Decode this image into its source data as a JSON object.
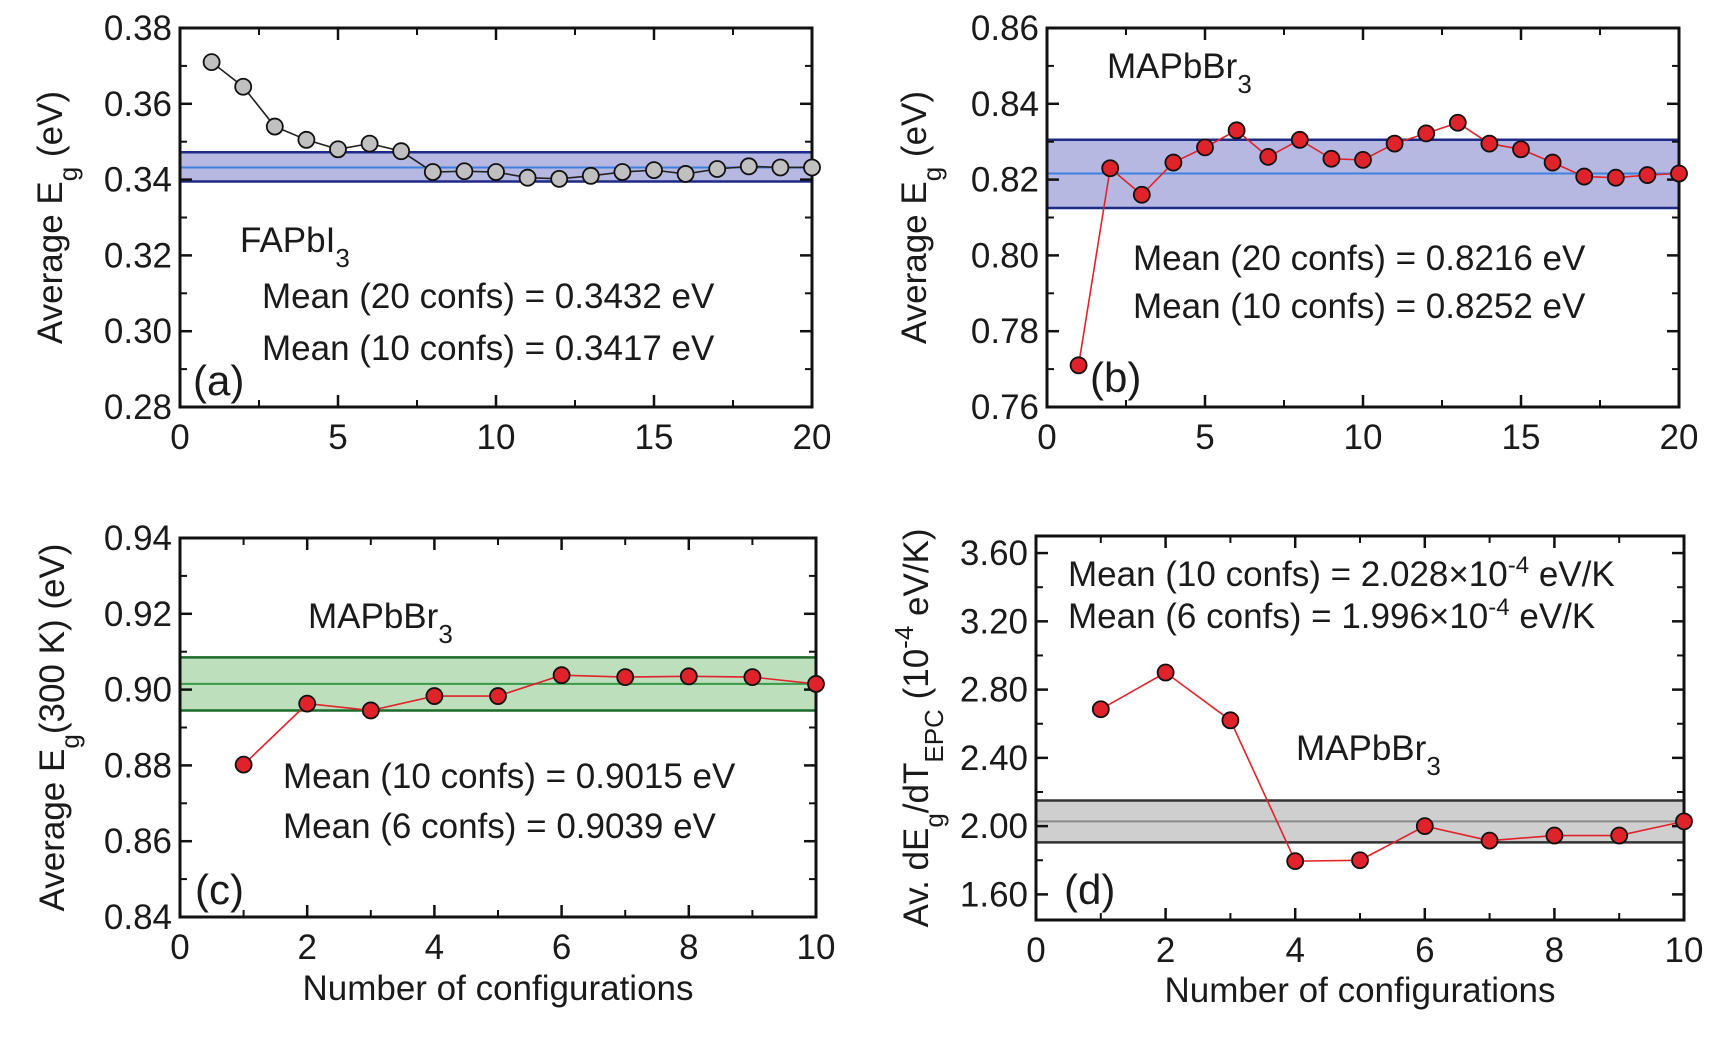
{
  "chart_data": [
    {
      "type": "line",
      "panel_label": "(a)",
      "material": {
        "base": "FAPbI",
        "sub": "3"
      },
      "ylabel": {
        "pre": "Average E",
        "sub": "g",
        "post": " (eV)"
      },
      "xlabel": "",
      "xlim": [
        0,
        20
      ],
      "ylim": [
        0.28,
        0.38
      ],
      "xticks": [
        0,
        5,
        10,
        15,
        20
      ],
      "xtick_labels": [
        "0",
        "5",
        "10",
        "15",
        "20"
      ],
      "yticks": [
        0.28,
        0.3,
        0.32,
        0.34,
        0.36,
        0.38
      ],
      "ytick_labels": [
        "0.28",
        "0.30",
        "0.32",
        "0.34",
        "0.36",
        "0.38"
      ],
      "x": [
        1,
        2,
        3,
        4,
        5,
        6,
        7,
        8,
        9,
        10,
        11,
        12,
        13,
        14,
        15,
        16,
        17,
        18,
        19,
        20
      ],
      "values": [
        0.371,
        0.3645,
        0.354,
        0.3505,
        0.348,
        0.3495,
        0.3475,
        0.342,
        0.3422,
        0.342,
        0.3405,
        0.3402,
        0.341,
        0.342,
        0.3425,
        0.3415,
        0.3428,
        0.3435,
        0.3432,
        0.3432
      ],
      "band": {
        "low": 0.3395,
        "mid": 0.3432,
        "high": 0.3472
      },
      "marker_color": "#c0c0c0",
      "line_color": "#222222",
      "band_fill": "#a9acdd",
      "band_edge": "#1f2a86",
      "band_mid": "#3f7fe0",
      "annotations": [
        "Mean (20 confs) = 0.3432 eV",
        "Mean (10 confs) = 0.3417 eV"
      ]
    },
    {
      "type": "line",
      "panel_label": "(b)",
      "material": {
        "base": "MAPbBr",
        "sub": "3"
      },
      "ylabel": {
        "pre": "Average E",
        "sub": "g",
        "post": " (eV)"
      },
      "xlabel": "",
      "xlim": [
        0,
        20
      ],
      "ylim": [
        0.76,
        0.86
      ],
      "xticks": [
        0,
        5,
        10,
        15,
        20
      ],
      "xtick_labels": [
        "0",
        "5",
        "10",
        "15",
        "20"
      ],
      "yticks": [
        0.76,
        0.78,
        0.8,
        0.82,
        0.84,
        0.86
      ],
      "ytick_labels": [
        "0.76",
        "0.78",
        "0.80",
        "0.82",
        "0.84",
        "0.86"
      ],
      "x": [
        1,
        2,
        3,
        4,
        5,
        6,
        7,
        8,
        9,
        10,
        11,
        12,
        13,
        14,
        15,
        16,
        17,
        18,
        19,
        20
      ],
      "values": [
        0.771,
        0.823,
        0.816,
        0.8245,
        0.8285,
        0.833,
        0.826,
        0.8305,
        0.8255,
        0.8252,
        0.8295,
        0.8322,
        0.835,
        0.8295,
        0.828,
        0.8245,
        0.8208,
        0.8205,
        0.8212,
        0.8216
      ],
      "band": {
        "low": 0.8125,
        "mid": 0.8216,
        "high": 0.8305
      },
      "marker_color": "#e0222b",
      "line_color": "#e0222b",
      "band_fill": "#a9acdd",
      "band_edge": "#1f2a86",
      "band_mid": "#3f7fe0",
      "annotations": [
        "Mean (20 confs) = 0.8216 eV",
        "Mean (10 confs) = 0.8252 eV"
      ]
    },
    {
      "type": "line",
      "panel_label": "(c)",
      "material": {
        "base": "MAPbBr",
        "sub": "3"
      },
      "ylabel": {
        "pre": "Average E",
        "sub": "g",
        "post": "(300 K) (eV)"
      },
      "xlabel": "Number of configurations",
      "xlim": [
        0,
        10
      ],
      "ylim": [
        0.84,
        0.94
      ],
      "xticks": [
        0,
        2,
        4,
        6,
        8,
        10
      ],
      "xtick_labels": [
        "0",
        "2",
        "4",
        "6",
        "8",
        "10"
      ],
      "yticks": [
        0.84,
        0.86,
        0.88,
        0.9,
        0.92,
        0.94
      ],
      "ytick_labels": [
        "0.84",
        "0.86",
        "0.88",
        "0.90",
        "0.92",
        "0.94"
      ],
      "x": [
        1,
        2,
        3,
        4,
        5,
        6,
        7,
        8,
        9,
        10
      ],
      "values": [
        0.8802,
        0.8963,
        0.8945,
        0.8983,
        0.8983,
        0.9038,
        0.9033,
        0.9035,
        0.9033,
        0.9015
      ],
      "band": {
        "low": 0.8945,
        "mid": 0.9015,
        "high": 0.9085
      },
      "marker_color": "#e0222b",
      "line_color": "#e0222b",
      "band_fill": "#b2d9b0",
      "band_edge": "#1b6b2a",
      "band_mid": "#3a9a48",
      "annotations": [
        "Mean (10 confs) = 0.9015 eV",
        "Mean (6 confs) = 0.9039 eV"
      ]
    },
    {
      "type": "line",
      "panel_label": "(d)",
      "material": {
        "base": "MAPbBr",
        "sub": "3"
      },
      "ylabel": {
        "pre": "Av. dE",
        "sub": "g",
        "mid": "/dT",
        "sub2": "EPC",
        "post": " (10",
        "sup": "-4",
        "post2": " eV/K)"
      },
      "xlabel": "Number of configurations",
      "xlim": [
        0,
        10
      ],
      "ylim": [
        1.45,
        3.7
      ],
      "xticks": [
        0,
        2,
        4,
        6,
        8,
        10
      ],
      "xtick_labels": [
        "0",
        "2",
        "4",
        "6",
        "8",
        "10"
      ],
      "yticks": [
        1.6,
        2.0,
        2.4,
        2.8,
        3.2,
        3.6
      ],
      "ytick_labels": [
        "1.60",
        "2.00",
        "2.40",
        "2.80",
        "3.20",
        "3.60"
      ],
      "x": [
        1,
        2,
        3,
        4,
        5,
        6,
        7,
        8,
        9,
        10
      ],
      "values": [
        2.685,
        2.9,
        2.62,
        1.795,
        1.8,
        2.0,
        1.915,
        1.945,
        1.945,
        2.028
      ],
      "band": {
        "low": 1.905,
        "mid": 2.028,
        "high": 2.15
      },
      "marker_color": "#e0222b",
      "line_color": "#e0222b",
      "band_fill": "#c7c7c7",
      "band_edge": "#333333",
      "band_mid": "#8a8a8a",
      "annotations_rich": [
        {
          "pre": "Mean (10 confs) = 2.028×10",
          "sup": "-4",
          "post": " eV/K"
        },
        {
          "pre": "Mean (6 confs) = 1.996×10",
          "sup": "-4",
          "post": " eV/K"
        }
      ]
    }
  ]
}
